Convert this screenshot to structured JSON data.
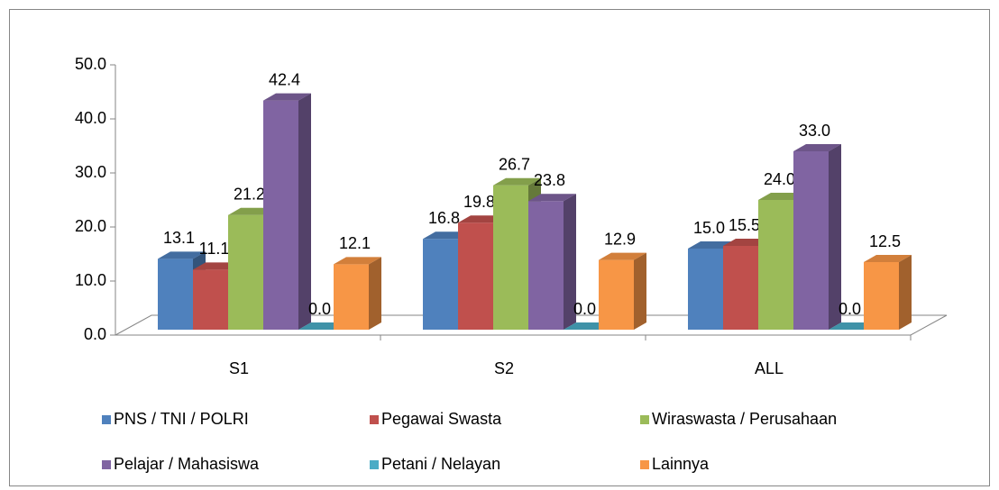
{
  "chart_data": {
    "type": "bar3d",
    "categories": [
      "S1",
      "S2",
      "ALL"
    ],
    "series": [
      {
        "name": "PNS / TNI / POLRI",
        "color": "#4f81bd",
        "values": [
          13.1,
          16.8,
          15.0
        ],
        "value_labels": [
          "13.1",
          "16.8",
          "15.0"
        ]
      },
      {
        "name": "Pegawai Swasta",
        "color": "#c0504d",
        "values": [
          11.1,
          19.8,
          15.5
        ],
        "value_labels": [
          "11.1",
          "19.8",
          "15.5"
        ]
      },
      {
        "name": "Wiraswasta / Perusahaan",
        "color": "#9bbb59",
        "values": [
          21.2,
          26.7,
          24.0
        ],
        "value_labels": [
          "21.2",
          "26.7",
          "24.0"
        ]
      },
      {
        "name": "Pelajar / Mahasiswa",
        "color": "#8064a2",
        "values": [
          42.4,
          23.8,
          33.0
        ],
        "value_labels": [
          "42.4",
          "23.8",
          "33.0"
        ]
      },
      {
        "name": "Petani / Nelayan",
        "color": "#4bacc6",
        "values": [
          0.0,
          0.0,
          0.0
        ],
        "value_labels": [
          "0.0",
          "0.0",
          "0.0"
        ]
      },
      {
        "name": "Lainnya",
        "color": "#f79646",
        "values": [
          12.1,
          12.9,
          12.5
        ],
        "value_labels": [
          "12.1",
          "12.9",
          "12.5"
        ]
      }
    ],
    "ylim": [
      0,
      50
    ],
    "yticks": [
      {
        "value": 0,
        "label": "0.0"
      },
      {
        "value": 10,
        "label": "10.0"
      },
      {
        "value": 20,
        "label": "20.0"
      },
      {
        "value": 30,
        "label": "30.0"
      },
      {
        "value": 40,
        "label": "40.0"
      },
      {
        "value": 50,
        "label": "50.0"
      }
    ],
    "legend": "bottom"
  }
}
